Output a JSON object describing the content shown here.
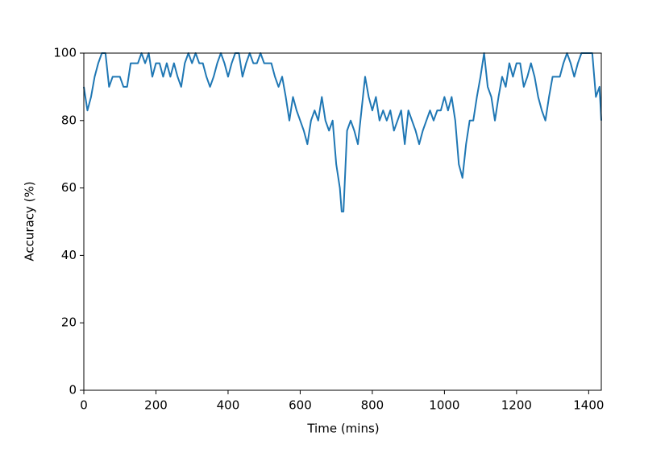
{
  "chart_data": {
    "type": "line",
    "xlabel": "Time (mins)",
    "ylabel": "Accuracy (%)",
    "x": [
      0,
      10,
      20,
      30,
      40,
      50,
      60,
      70,
      80,
      90,
      100,
      110,
      120,
      130,
      140,
      150,
      160,
      170,
      180,
      190,
      200,
      210,
      220,
      230,
      240,
      250,
      260,
      270,
      280,
      290,
      300,
      310,
      320,
      330,
      340,
      350,
      360,
      370,
      380,
      390,
      400,
      410,
      420,
      430,
      440,
      450,
      460,
      470,
      480,
      490,
      500,
      510,
      520,
      530,
      540,
      550,
      560,
      570,
      580,
      590,
      600,
      610,
      620,
      630,
      640,
      650,
      660,
      670,
      680,
      690,
      700,
      710,
      715,
      720,
      730,
      740,
      750,
      760,
      770,
      780,
      790,
      800,
      810,
      820,
      830,
      840,
      850,
      860,
      870,
      880,
      890,
      900,
      910,
      920,
      930,
      940,
      950,
      960,
      970,
      980,
      990,
      1000,
      1010,
      1020,
      1030,
      1040,
      1050,
      1060,
      1070,
      1080,
      1090,
      1100,
      1110,
      1120,
      1130,
      1140,
      1150,
      1160,
      1170,
      1180,
      1190,
      1200,
      1210,
      1220,
      1230,
      1240,
      1250,
      1260,
      1270,
      1280,
      1290,
      1300,
      1310,
      1320,
      1330,
      1340,
      1350,
      1360,
      1370,
      1380,
      1390,
      1400,
      1410,
      1420,
      1430,
      1435
    ],
    "series": [
      {
        "name": "Accuracy",
        "color": "#1f77b4",
        "values": [
          90,
          83,
          87,
          93,
          97,
          100,
          100,
          90,
          93,
          93,
          93,
          90,
          90,
          97,
          97,
          97,
          100,
          97,
          100,
          93,
          97,
          97,
          93,
          97,
          93,
          97,
          93,
          90,
          97,
          100,
          97,
          100,
          97,
          97,
          93,
          90,
          93,
          97,
          100,
          97,
          93,
          97,
          100,
          100,
          93,
          97,
          100,
          97,
          97,
          100,
          97,
          97,
          97,
          93,
          90,
          93,
          87,
          80,
          87,
          83,
          80,
          77,
          73,
          80,
          83,
          80,
          87,
          80,
          77,
          80,
          67,
          60,
          53,
          53,
          77,
          80,
          77,
          73,
          83,
          93,
          87,
          83,
          87,
          80,
          83,
          80,
          83,
          77,
          80,
          83,
          73,
          83,
          80,
          77,
          73,
          77,
          80,
          83,
          80,
          83,
          83,
          87,
          83,
          87,
          80,
          67,
          63,
          73,
          80,
          80,
          87,
          93,
          100,
          90,
          87,
          80,
          87,
          93,
          90,
          97,
          93,
          97,
          97,
          90,
          93,
          97,
          93,
          87,
          83,
          80,
          87,
          93,
          93,
          93,
          97,
          100,
          97,
          93,
          97,
          100,
          100,
          100,
          100,
          87,
          90,
          80
        ]
      }
    ],
    "xlim": [
      0,
      1435
    ],
    "ylim": [
      0,
      100
    ],
    "xticks": [
      0,
      200,
      400,
      600,
      800,
      1000,
      1200,
      1400
    ],
    "yticks": [
      0,
      20,
      40,
      60,
      80,
      100
    ],
    "grid": false
  }
}
